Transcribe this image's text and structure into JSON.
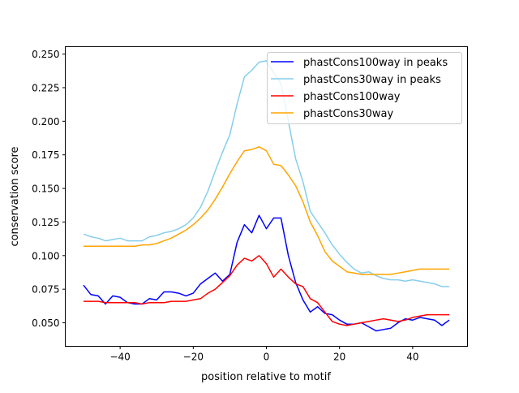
{
  "chart_data": {
    "type": "line",
    "title": "",
    "xlabel": "position relative to motif",
    "ylabel": "conservation score",
    "xlim": [
      -55,
      55
    ],
    "ylim": [
      0.0325,
      0.2555
    ],
    "xticks": [
      -40,
      -20,
      0,
      20,
      40
    ],
    "xtick_labels": [
      "−40",
      "−20",
      "0",
      "20",
      "40"
    ],
    "yticks": [
      0.05,
      0.075,
      0.1,
      0.125,
      0.15,
      0.175,
      0.2,
      0.225,
      0.25
    ],
    "ytick_labels": [
      "0.050",
      "0.075",
      "0.100",
      "0.125",
      "0.150",
      "0.175",
      "0.200",
      "0.225",
      "0.250"
    ],
    "grid": false,
    "legend_position": "top-right",
    "x": [
      -50,
      -48,
      -46,
      -44,
      -42,
      -40,
      -38,
      -36,
      -34,
      -32,
      -30,
      -28,
      -26,
      -24,
      -22,
      -20,
      -18,
      -16,
      -14,
      -12,
      -10,
      -8,
      -6,
      -4,
      -2,
      0,
      2,
      4,
      6,
      8,
      10,
      12,
      14,
      16,
      18,
      20,
      22,
      24,
      26,
      28,
      30,
      32,
      34,
      36,
      38,
      40,
      42,
      44,
      46,
      48,
      50
    ],
    "series": [
      {
        "name": "phastCons100way in peaks",
        "color": "#0000ff",
        "values": [
          0.078,
          0.071,
          0.07,
          0.064,
          0.07,
          0.069,
          0.065,
          0.064,
          0.064,
          0.068,
          0.067,
          0.073,
          0.073,
          0.072,
          0.07,
          0.072,
          0.079,
          0.083,
          0.087,
          0.081,
          0.086,
          0.11,
          0.123,
          0.117,
          0.13,
          0.12,
          0.128,
          0.128,
          0.1,
          0.08,
          0.067,
          0.058,
          0.062,
          0.057,
          0.056,
          0.052,
          0.049,
          0.049,
          0.05,
          0.047,
          0.044,
          0.045,
          0.046,
          0.05,
          0.053,
          0.052,
          0.054,
          0.053,
          0.052,
          0.048,
          0.052
        ]
      },
      {
        "name": "phastCons30way in peaks",
        "color": "#87ceeb",
        "values": [
          0.116,
          0.114,
          0.113,
          0.111,
          0.112,
          0.113,
          0.111,
          0.111,
          0.111,
          0.114,
          0.115,
          0.117,
          0.118,
          0.12,
          0.123,
          0.128,
          0.136,
          0.148,
          0.163,
          0.177,
          0.19,
          0.213,
          0.233,
          0.238,
          0.244,
          0.245,
          0.236,
          0.228,
          0.2,
          0.172,
          0.155,
          0.133,
          0.125,
          0.117,
          0.108,
          0.101,
          0.095,
          0.09,
          0.087,
          0.088,
          0.085,
          0.083,
          0.082,
          0.082,
          0.081,
          0.082,
          0.081,
          0.08,
          0.079,
          0.077,
          0.077
        ]
      },
      {
        "name": "phastCons100way",
        "color": "#ff0000",
        "values": [
          0.066,
          0.066,
          0.066,
          0.065,
          0.065,
          0.065,
          0.065,
          0.065,
          0.064,
          0.065,
          0.065,
          0.065,
          0.066,
          0.066,
          0.066,
          0.067,
          0.068,
          0.072,
          0.075,
          0.08,
          0.085,
          0.093,
          0.098,
          0.096,
          0.1,
          0.094,
          0.084,
          0.09,
          0.084,
          0.079,
          0.077,
          0.068,
          0.065,
          0.058,
          0.051,
          0.049,
          0.048,
          0.049,
          0.05,
          0.051,
          0.052,
          0.053,
          0.052,
          0.051,
          0.052,
          0.054,
          0.055,
          0.056,
          0.056,
          0.056,
          0.056
        ]
      },
      {
        "name": "phastCons30way",
        "color": "#ffa500",
        "values": [
          0.107,
          0.107,
          0.107,
          0.107,
          0.107,
          0.107,
          0.107,
          0.107,
          0.108,
          0.108,
          0.109,
          0.111,
          0.113,
          0.116,
          0.119,
          0.123,
          0.128,
          0.134,
          0.142,
          0.151,
          0.161,
          0.17,
          0.178,
          0.179,
          0.181,
          0.178,
          0.168,
          0.167,
          0.16,
          0.152,
          0.14,
          0.125,
          0.115,
          0.103,
          0.096,
          0.092,
          0.088,
          0.087,
          0.086,
          0.086,
          0.086,
          0.086,
          0.086,
          0.087,
          0.088,
          0.089,
          0.09,
          0.09,
          0.09,
          0.09,
          0.09
        ]
      }
    ]
  }
}
